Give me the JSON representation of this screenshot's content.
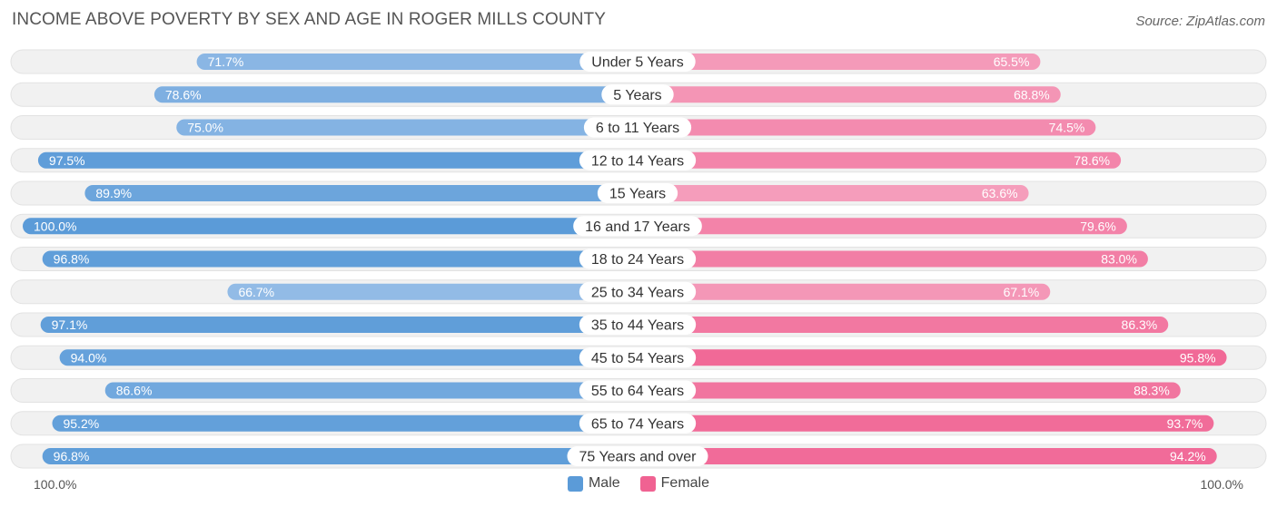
{
  "title": "INCOME ABOVE POVERTY BY SEX AND AGE IN ROGER MILLS COUNTY",
  "source": "Source: ZipAtlas.com",
  "axis": {
    "left_label": "100.0%",
    "right_label": "100.0%"
  },
  "legend": {
    "male": "Male",
    "female": "Female"
  },
  "colors": {
    "male_dark": "#5b9bd8",
    "male_light": "#9dc1e9",
    "female_dark": "#f06292",
    "female_light": "#f5a3bf",
    "track": "#f1f1f1"
  },
  "chart_data": {
    "type": "bar",
    "orientation": "horizontal-diverging",
    "categories": [
      "Under 5 Years",
      "5 Years",
      "6 to 11 Years",
      "12 to 14 Years",
      "15 Years",
      "16 and 17 Years",
      "18 to 24 Years",
      "25 to 34 Years",
      "35 to 44 Years",
      "45 to 54 Years",
      "55 to 64 Years",
      "65 to 74 Years",
      "75 Years and over"
    ],
    "series": [
      {
        "name": "Male",
        "values": [
          71.7,
          78.6,
          75.0,
          97.5,
          89.9,
          100.0,
          96.8,
          66.7,
          97.1,
          94.0,
          86.6,
          95.2,
          96.8
        ]
      },
      {
        "name": "Female",
        "values": [
          65.5,
          68.8,
          74.5,
          78.6,
          63.6,
          79.6,
          83.0,
          67.1,
          86.3,
          95.8,
          88.3,
          93.7,
          94.2
        ]
      }
    ],
    "xlim": [
      0,
      100
    ],
    "value_suffix": "%",
    "legend_position": "bottom-center"
  }
}
